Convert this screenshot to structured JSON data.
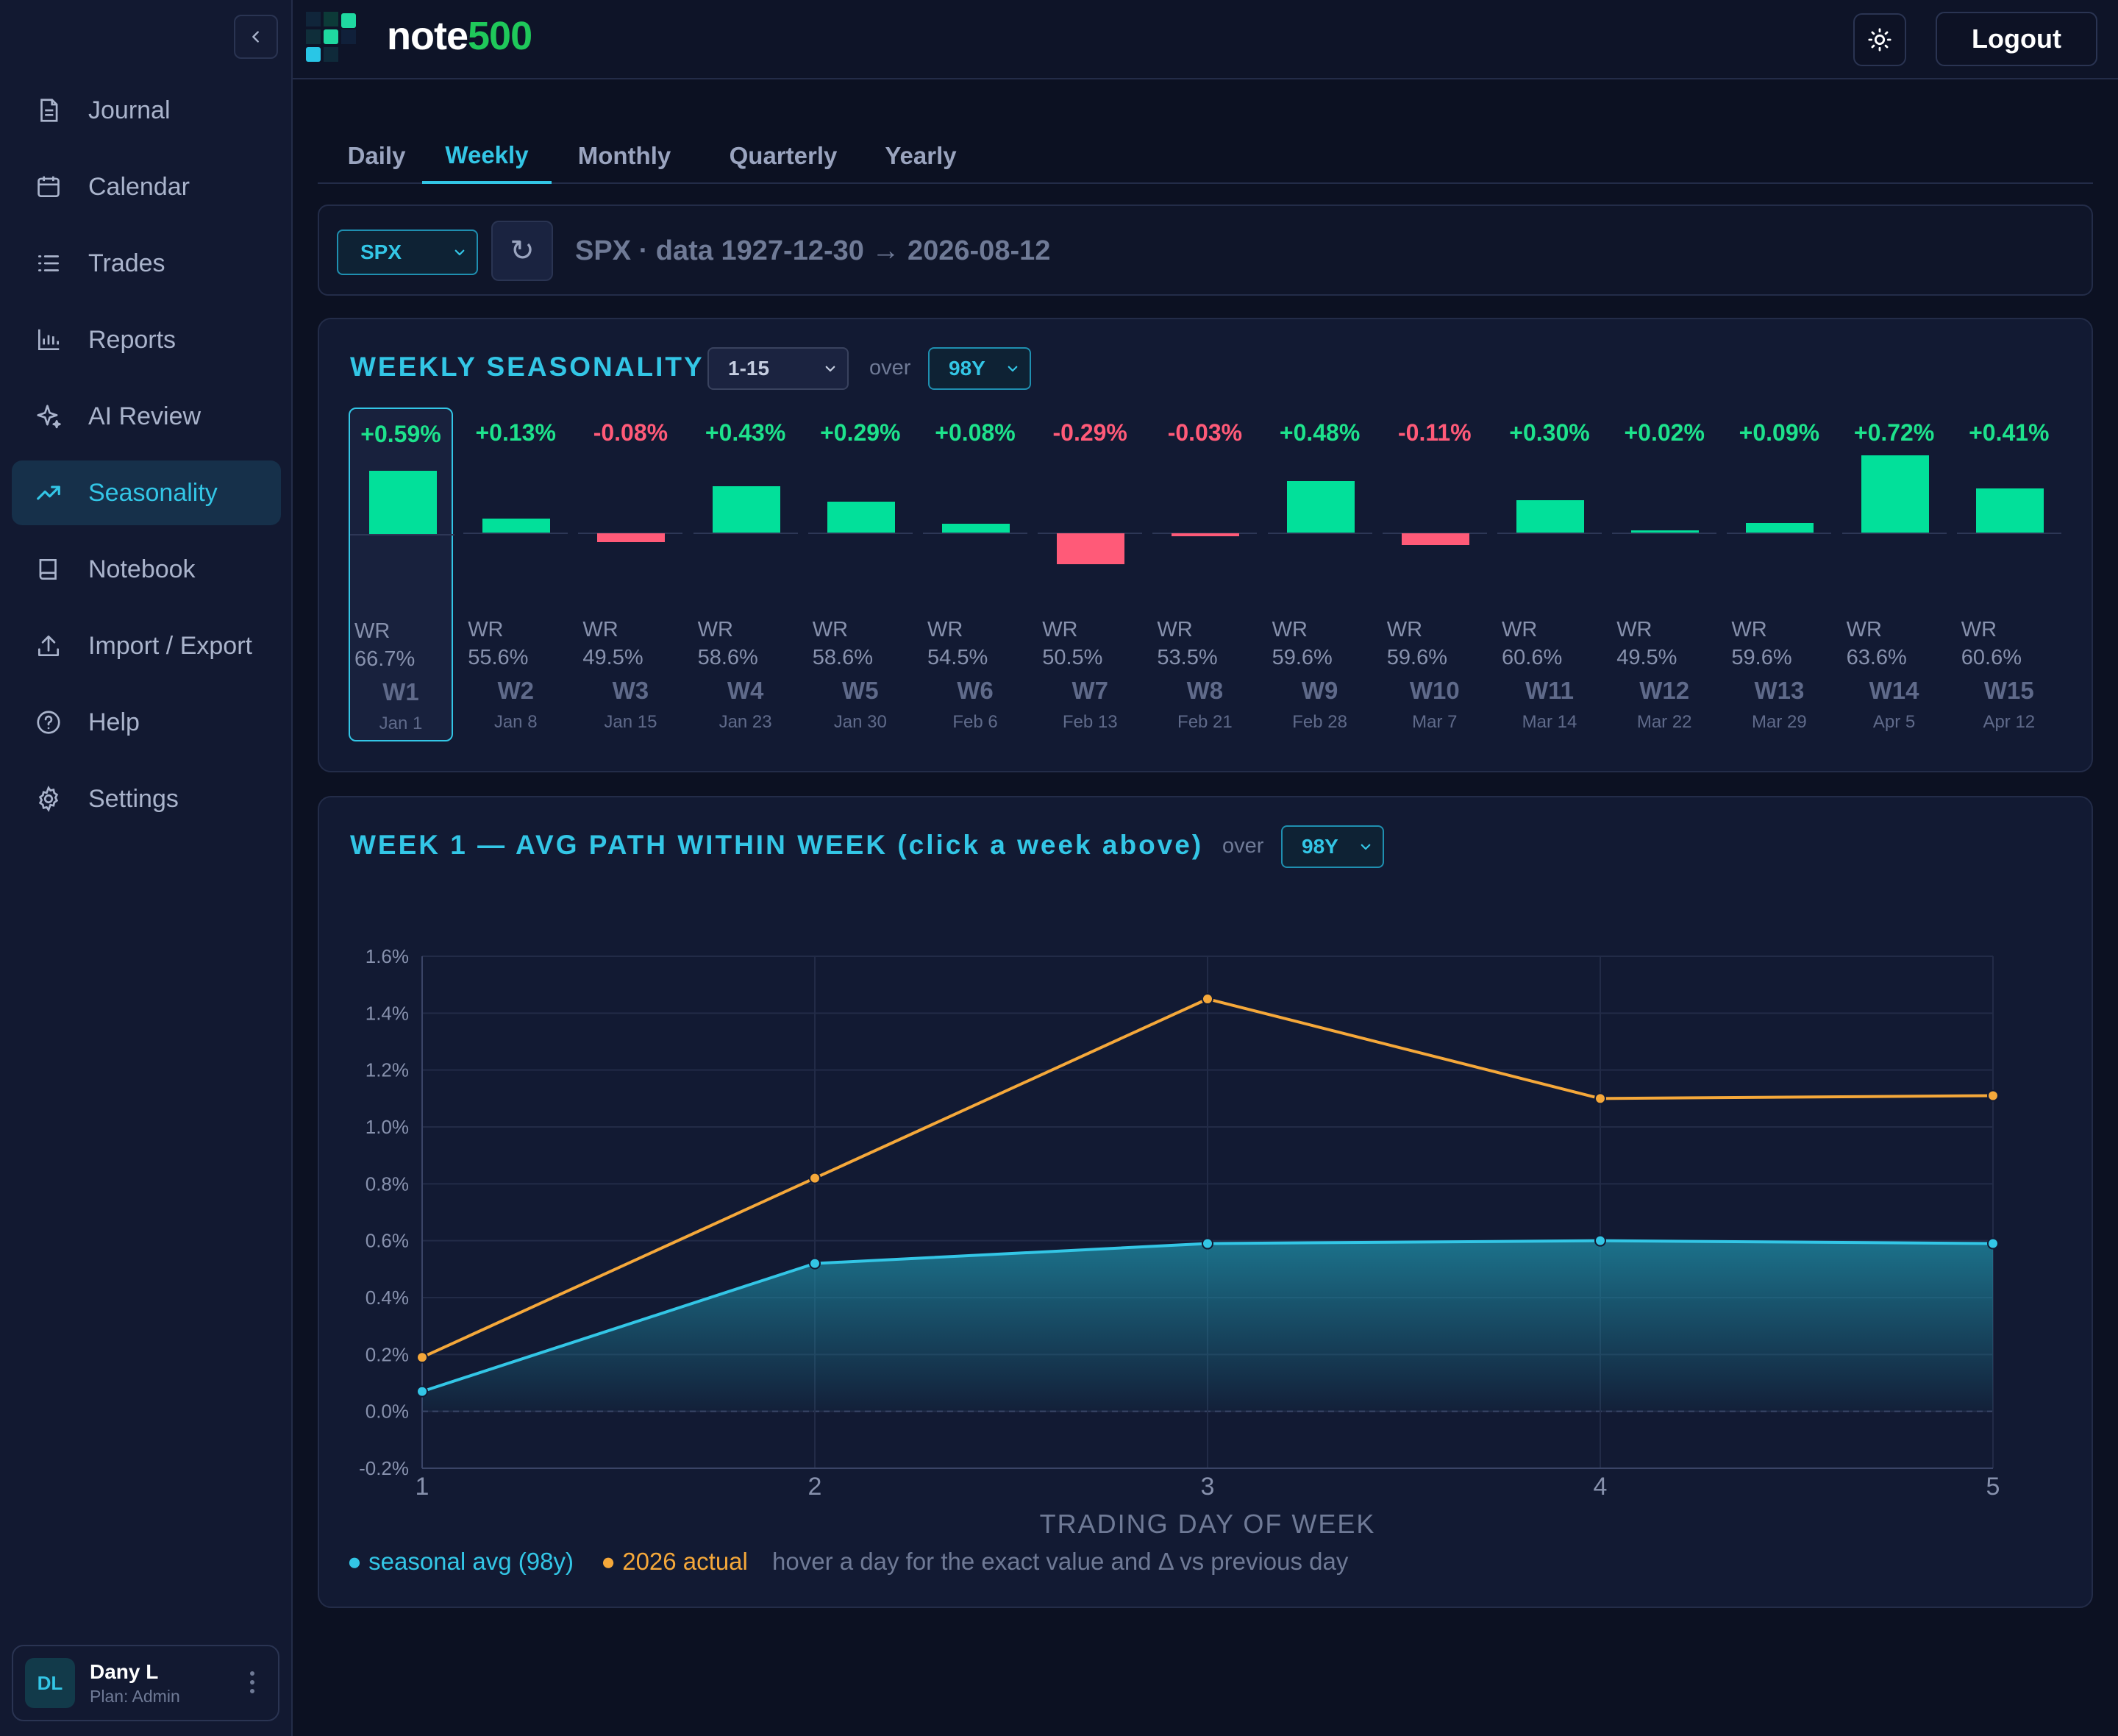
{
  "app": {
    "brand_word": "note",
    "brand_num": "500"
  },
  "sidebar": {
    "items": [
      {
        "label": "Journal",
        "icon": "journal-icon",
        "active": false
      },
      {
        "label": "Calendar",
        "icon": "calendar-icon",
        "active": false
      },
      {
        "label": "Trades",
        "icon": "list-icon",
        "active": false
      },
      {
        "label": "Reports",
        "icon": "bar-chart-icon",
        "active": false
      },
      {
        "label": "AI Review",
        "icon": "sparkle-icon",
        "active": false
      },
      {
        "label": "Seasonality",
        "icon": "trend-up-icon",
        "active": true
      },
      {
        "label": "Notebook",
        "icon": "book-icon",
        "active": false
      },
      {
        "label": "Import / Export",
        "icon": "upload-icon",
        "active": false
      },
      {
        "label": "Help",
        "icon": "help-icon",
        "active": false
      },
      {
        "label": "Settings",
        "icon": "gear-icon",
        "active": false
      }
    ],
    "user": {
      "initials": "DL",
      "name": "Dany L",
      "plan": "Plan: Admin"
    }
  },
  "header": {
    "logout_label": "Logout"
  },
  "tabs": [
    "Daily",
    "Weekly",
    "Monthly",
    "Quarterly",
    "Yearly"
  ],
  "active_tab": "Weekly",
  "symbol_bar": {
    "symbol": "SPX",
    "refresh_glyph": "↻",
    "info": "SPX · data 1927-12-30 → 2026-08-12"
  },
  "weekly": {
    "title": "WEEKLY SEASONALITY",
    "range": "1-15",
    "over_label": "over",
    "years": "98Y",
    "wr_label": "WR",
    "selected": "W1",
    "weeks": [
      {
        "name": "W1",
        "date": "Jan 1",
        "pct": "+0.59%",
        "value": 0.59,
        "wr": "66.7%"
      },
      {
        "name": "W2",
        "date": "Jan 8",
        "pct": "+0.13%",
        "value": 0.13,
        "wr": "55.6%"
      },
      {
        "name": "W3",
        "date": "Jan 15",
        "pct": "-0.08%",
        "value": -0.08,
        "wr": "49.5%"
      },
      {
        "name": "W4",
        "date": "Jan 23",
        "pct": "+0.43%",
        "value": 0.43,
        "wr": "58.6%"
      },
      {
        "name": "W5",
        "date": "Jan 30",
        "pct": "+0.29%",
        "value": 0.29,
        "wr": "58.6%"
      },
      {
        "name": "W6",
        "date": "Feb 6",
        "pct": "+0.08%",
        "value": 0.08,
        "wr": "54.5%"
      },
      {
        "name": "W7",
        "date": "Feb 13",
        "pct": "-0.29%",
        "value": -0.29,
        "wr": "50.5%"
      },
      {
        "name": "W8",
        "date": "Feb 21",
        "pct": "-0.03%",
        "value": -0.03,
        "wr": "53.5%"
      },
      {
        "name": "W9",
        "date": "Feb 28",
        "pct": "+0.48%",
        "value": 0.48,
        "wr": "59.6%"
      },
      {
        "name": "W10",
        "date": "Mar 7",
        "pct": "-0.11%",
        "value": -0.11,
        "wr": "59.6%"
      },
      {
        "name": "W11",
        "date": "Mar 14",
        "pct": "+0.30%",
        "value": 0.3,
        "wr": "60.6%"
      },
      {
        "name": "W12",
        "date": "Mar 22",
        "pct": "+0.02%",
        "value": 0.02,
        "wr": "49.5%"
      },
      {
        "name": "W13",
        "date": "Mar 29",
        "pct": "+0.09%",
        "value": 0.09,
        "wr": "59.6%"
      },
      {
        "name": "W14",
        "date": "Apr 5",
        "pct": "+0.72%",
        "value": 0.72,
        "wr": "63.6%"
      },
      {
        "name": "W15",
        "date": "Apr 12",
        "pct": "+0.41%",
        "value": 0.41,
        "wr": "60.6%"
      }
    ]
  },
  "path": {
    "title": "WEEK 1 — AVG PATH WITHIN WEEK (click a week above)",
    "over_label": "over",
    "years": "98Y",
    "legend_avg": "seasonal avg (98y)",
    "legend_actual": "2026 actual",
    "hint": "hover a day for the exact value and Δ vs previous day"
  },
  "chart_data": {
    "type": "line",
    "xlabel": "TRADING DAY OF WEEK",
    "ylabel": "",
    "x": [
      1,
      2,
      3,
      4,
      5
    ],
    "ylim": [
      -0.2,
      1.6
    ],
    "yticks": [
      "-0.2%",
      "0.0%",
      "0.2%",
      "0.4%",
      "0.6%",
      "0.8%",
      "1.0%",
      "1.2%",
      "1.4%",
      "1.6%"
    ],
    "series": [
      {
        "name": "seasonal avg (98y)",
        "color": "#33c6e6",
        "values": [
          0.07,
          0.52,
          0.59,
          0.6,
          0.59
        ],
        "area": true
      },
      {
        "name": "2026 actual",
        "color": "#f5a83a",
        "values": [
          0.19,
          0.82,
          1.45,
          1.1,
          1.11
        ],
        "area": false
      }
    ],
    "grid": true
  },
  "colors": {
    "accent": "#33c6e6",
    "positive": "#02e09a",
    "negative": "#ff5a78",
    "actual": "#f5a83a",
    "brand_green": "#1fc85a"
  }
}
